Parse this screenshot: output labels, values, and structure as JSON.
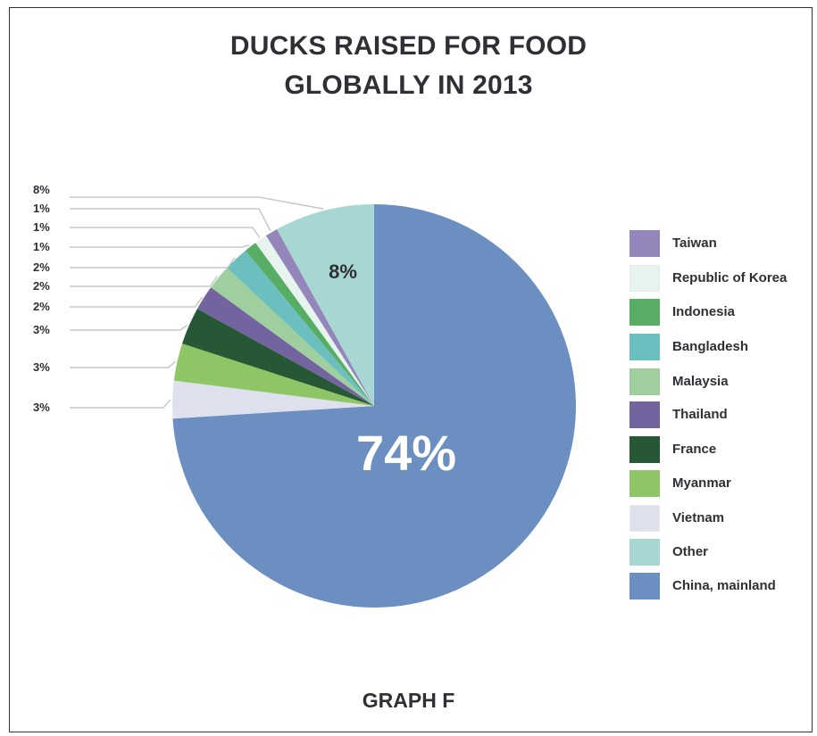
{
  "title_line1": "DUCKS RAISED FOR FOOD",
  "title_line2": "GLOBALLY IN 2013",
  "footer": "GRAPH F",
  "chart_data": {
    "type": "pie",
    "title": "DUCKS RAISED FOR FOOD GLOBALLY IN 2013",
    "unit": "%",
    "slices": [
      {
        "label": "China, mainland",
        "value": 74,
        "color": "#6a8fc0",
        "display": "74%"
      },
      {
        "label": "Vietnam",
        "value": 3,
        "color": "#dfe0ee",
        "display": "3%"
      },
      {
        "label": "Myanmar",
        "value": 3,
        "color": "#8ec565",
        "display": "3%"
      },
      {
        "label": "France",
        "value": 3,
        "color": "#275835",
        "display": "3%"
      },
      {
        "label": "Thailand",
        "value": 2,
        "color": "#73649f",
        "display": "2%"
      },
      {
        "label": "Malaysia",
        "value": 2,
        "color": "#9fcf9f",
        "display": "2%"
      },
      {
        "label": "Bangladesh",
        "value": 2,
        "color": "#6cbfbf",
        "display": "2%"
      },
      {
        "label": "Indonesia",
        "value": 1,
        "color": "#57ad63",
        "display": "1%"
      },
      {
        "label": "Republic of Korea",
        "value": 1,
        "color": "#e6f3ee",
        "display": "1%"
      },
      {
        "label": "Taiwan",
        "value": 1,
        "color": "#9486bb",
        "display": "1%"
      },
      {
        "label": "Other",
        "value": 8,
        "color": "#a7d7d2",
        "display": "8%"
      }
    ],
    "callout_labels": [
      "8%",
      "1%",
      "1%",
      "1%",
      "2%",
      "2%",
      "2%",
      "3%",
      "3%",
      "3%"
    ],
    "legend_order": [
      "Taiwan",
      "Republic of Korea",
      "Indonesia",
      "Bangladesh",
      "Malaysia",
      "Thailand",
      "France",
      "Myanmar",
      "Vietnam",
      "Other",
      "China, mainland"
    ],
    "legend_placement": "right"
  }
}
